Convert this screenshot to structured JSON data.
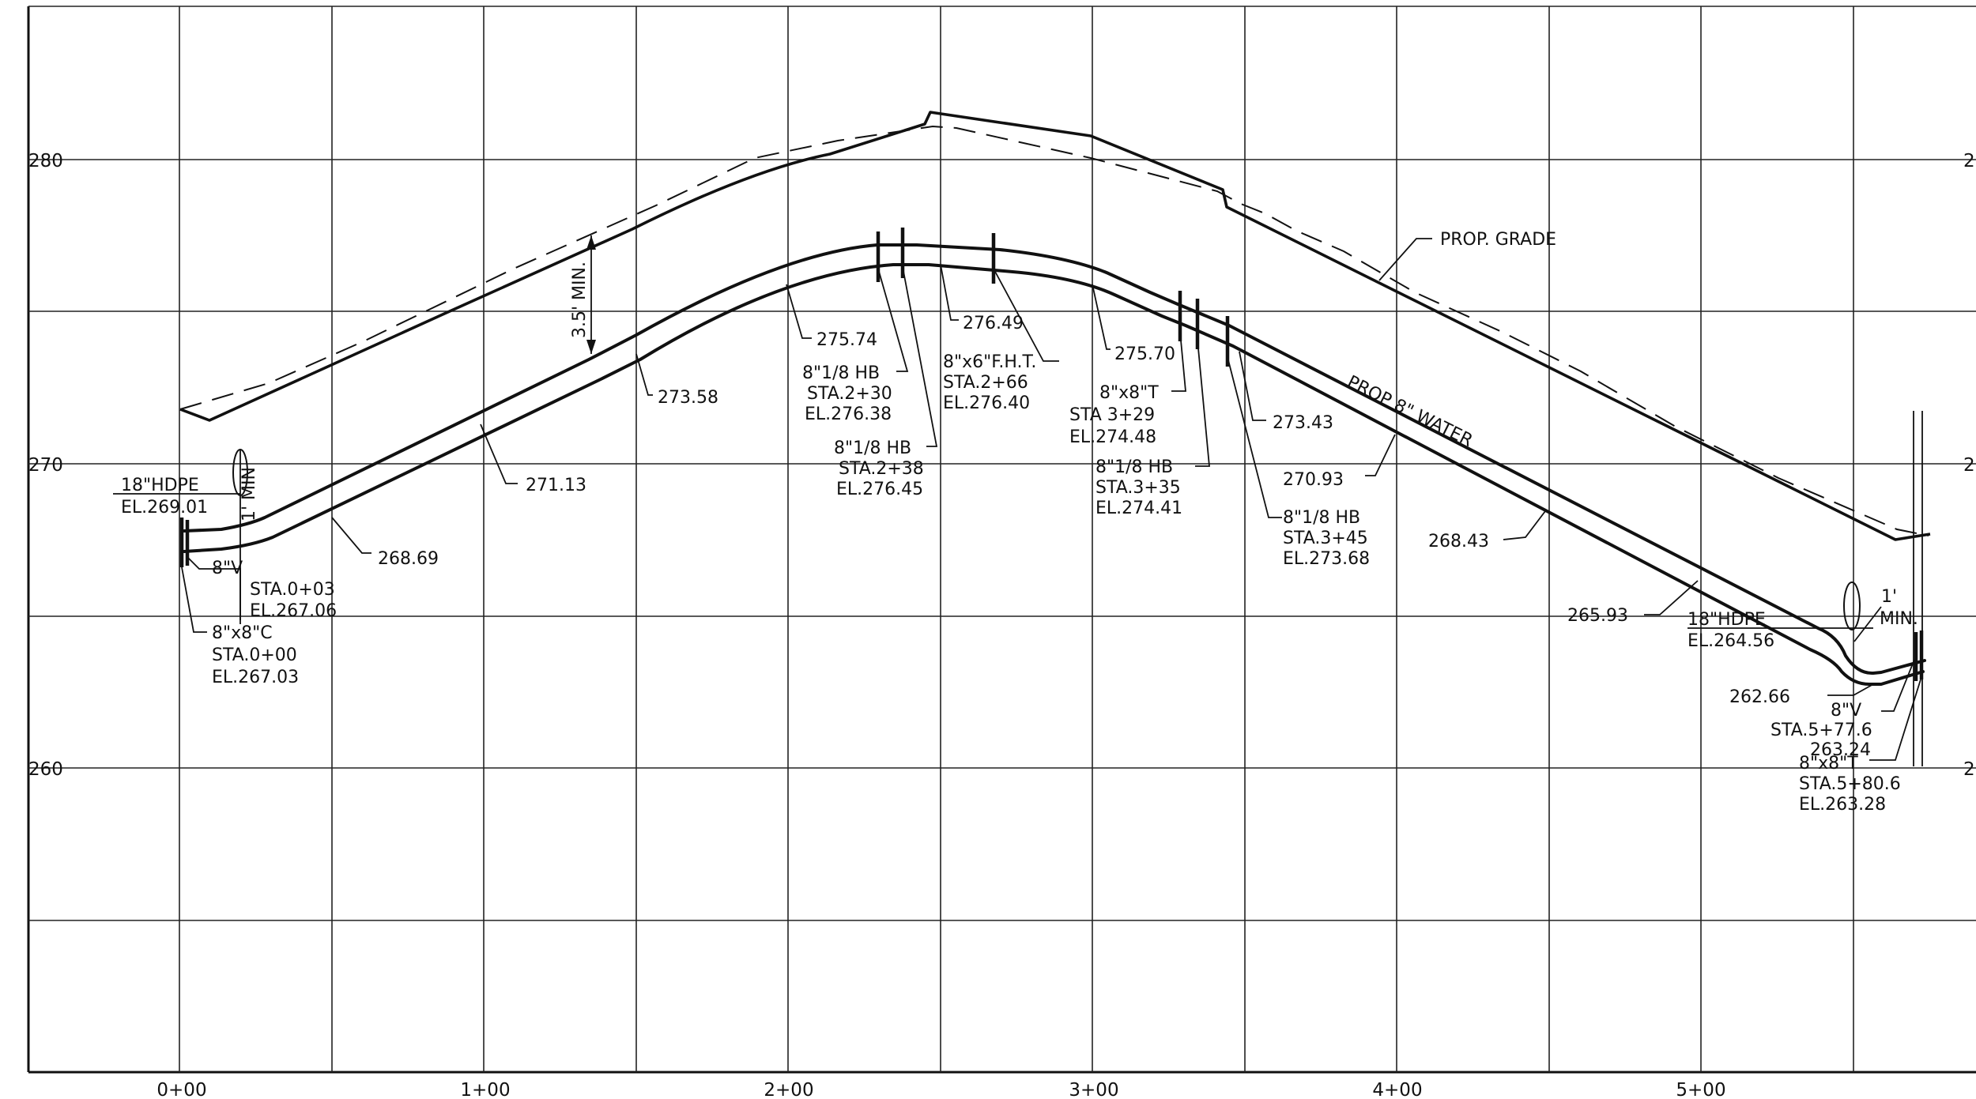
{
  "elevation_axis": {
    "left": [
      "280",
      "270",
      "260"
    ],
    "right": [
      "2",
      "2",
      "2"
    ]
  },
  "station_axis": [
    "0+00",
    "1+00",
    "2+00",
    "3+00",
    "4+00",
    "5+00"
  ],
  "grade": {
    "label": "PROP. GRADE",
    "cover_label": "3.5' MIN."
  },
  "pipe": {
    "label": "PROP 8\" WATER"
  },
  "start_crossing": {
    "line1": "18\"HDPE",
    "line2": "EL.269.01",
    "min_label": "1' MIN"
  },
  "end_crossing": {
    "line1": "18\"HDPE",
    "line2": "EL.264.56",
    "min_line1": "1'",
    "min_line2": "MIN."
  },
  "elevation_labels": {
    "e26869": "268.69",
    "e27113": "271.13",
    "e27358": "273.58",
    "e27574": "275.74",
    "e27649": "276.49",
    "e27570": "275.70",
    "e27343": "273.43",
    "e27093": "270.93",
    "e26843": "268.43",
    "e26593": "265.93",
    "e26266": "262.66"
  },
  "callouts": {
    "valve_start": [
      "8\"V",
      "STA.0+03",
      "EL.267.06"
    ],
    "cross_start": [
      "8\"x8\"C",
      "STA.0+00",
      "EL.267.03"
    ],
    "hb_230": [
      "8\"1/8 HB",
      "STA.2+30",
      "EL.276.38"
    ],
    "hb_238": [
      "8\"1/8 HB",
      "STA.2+38",
      "EL.276.45"
    ],
    "fht_266": [
      "8\"x6\"F.H.T.",
      "STA.2+66",
      "EL.276.40"
    ],
    "tee_329": [
      "8\"x8\"T",
      "STA 3+29",
      "EL.274.48"
    ],
    "hb_335": [
      "8\"1/8 HB",
      "STA.3+35",
      "EL.274.41"
    ],
    "hb_345": [
      "8\"1/8 HB",
      "STA.3+45",
      "EL.273.68"
    ],
    "valve_end": [
      "8\"V",
      "STA.5+77.6",
      "263.24"
    ],
    "tee_end": [
      "8\"x8\"T",
      "STA.5+80.6",
      "EL.263.28"
    ]
  }
}
